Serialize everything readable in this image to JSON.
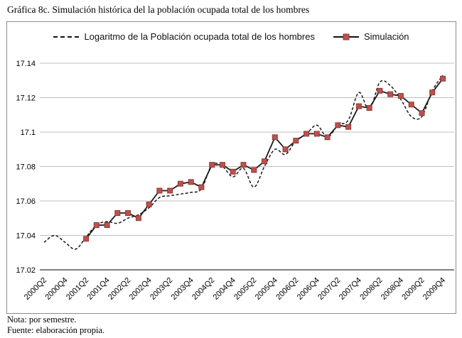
{
  "title": "Gráfica 8c. Simulación histórica del la población ocupada total de los hombres",
  "notes": {
    "note": "Nota: por semestre.",
    "source": "Fuente: elaboración propia."
  },
  "legend": {
    "position": "top-center",
    "items": [
      {
        "label": "Logaritmo de la Población ocupada total de los hombres",
        "sample": "dashed-black-line"
      },
      {
        "label": "Simulación",
        "sample": "solid-black-line-with-red-square-marker"
      }
    ]
  },
  "colors": {
    "marker_fill": "#C0504D",
    "marker_border": "#8C3A37",
    "series_line": "#1A1A1A",
    "gridline": "#BFBFBF",
    "axis_line": "#808080",
    "chart_border": "#8C8C8C",
    "background": "#FFFFFF",
    "text": "#000000"
  },
  "chart_data": {
    "type": "line",
    "x_frequency": "quarterly",
    "x_all": [
      "2000Q2",
      "2000Q3",
      "2000Q4",
      "2001Q1",
      "2001Q2",
      "2001Q3",
      "2001Q4",
      "2002Q1",
      "2002Q2",
      "2002Q3",
      "2002Q4",
      "2003Q1",
      "2003Q2",
      "2003Q3",
      "2003Q4",
      "2004Q1",
      "2004Q2",
      "2004Q3",
      "2004Q4",
      "2005Q1",
      "2005Q2",
      "2005Q3",
      "2005Q4",
      "2006Q1",
      "2006Q2",
      "2006Q3",
      "2006Q4",
      "2007Q1",
      "2007Q2",
      "2007Q3",
      "2007Q4",
      "2008Q1",
      "2008Q2",
      "2008Q3",
      "2008Q4",
      "2009Q1",
      "2009Q2",
      "2009Q3",
      "2009Q4"
    ],
    "x_tick_labels": [
      "2000Q2",
      "2000Q4",
      "2001Q2",
      "2001Q4",
      "2002Q2",
      "2002Q4",
      "2003Q2",
      "2003Q4",
      "2004Q2",
      "2004Q4",
      "2005Q2",
      "2005Q4",
      "2006Q2",
      "2006Q4",
      "2007Q2",
      "2007Q4",
      "2008Q2",
      "2008Q4",
      "2009Q2",
      "2009Q4"
    ],
    "x_tick_every": 2,
    "x_tick_rotation_deg": -45,
    "ylim": [
      17.02,
      17.14
    ],
    "yticks": [
      17.02,
      17.04,
      17.06,
      17.08,
      17.1,
      17.12,
      17.14
    ],
    "ytick_labels": [
      "17.02",
      "17.04",
      "17.06",
      "17.08",
      "17.1",
      "17.12",
      "17.14"
    ],
    "grid": "horizontal",
    "legend_position": "top",
    "series": [
      {
        "name": "Logaritmo de la Población ocupada total de los hombres",
        "line": "dashed",
        "smoothed": true,
        "marker": "none",
        "start_index": 0,
        "values": [
          17.036,
          17.04,
          17.036,
          17.032,
          17.039,
          17.046,
          17.048,
          17.047,
          17.05,
          17.052,
          17.056,
          17.062,
          17.063,
          17.064,
          17.065,
          17.067,
          17.081,
          17.08,
          17.074,
          17.079,
          17.068,
          17.08,
          17.09,
          17.087,
          17.095,
          17.099,
          17.104,
          17.097,
          17.104,
          17.107,
          17.123,
          17.113,
          17.129,
          17.127,
          17.119,
          17.109,
          17.109,
          17.124,
          17.133
        ]
      },
      {
        "name": "Simulación",
        "line": "solid",
        "smoothed": false,
        "marker": "square",
        "start_index": 4,
        "values": [
          17.038,
          17.046,
          17.046,
          17.053,
          17.053,
          17.05,
          17.058,
          17.066,
          17.066,
          17.07,
          17.071,
          17.068,
          17.081,
          17.081,
          17.077,
          17.081,
          17.078,
          17.083,
          17.097,
          17.09,
          17.095,
          17.099,
          17.099,
          17.097,
          17.104,
          17.103,
          17.115,
          17.114,
          17.124,
          17.122,
          17.121,
          17.116,
          17.111,
          17.123,
          17.131
        ]
      }
    ]
  }
}
